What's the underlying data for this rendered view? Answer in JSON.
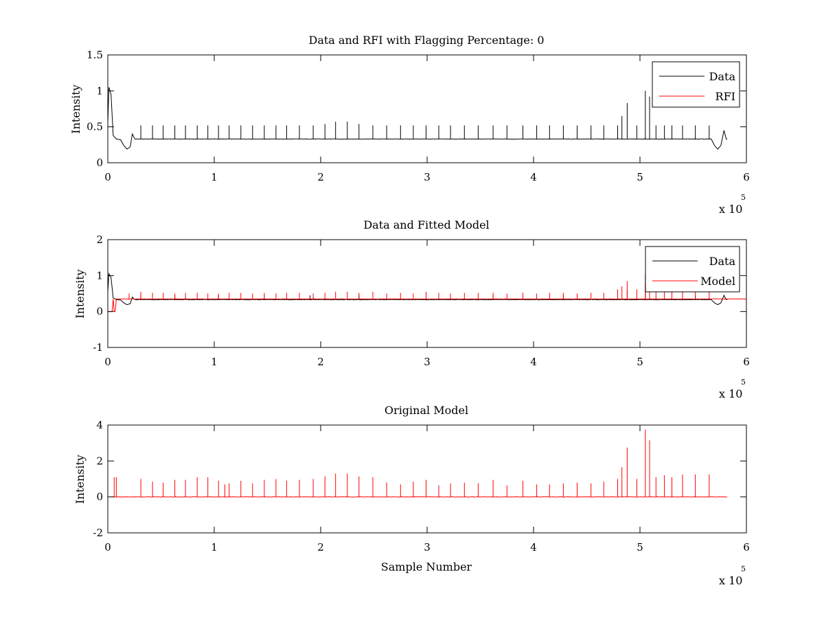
{
  "figure": {
    "colors": {
      "data": "#000000",
      "rfi": "#ff0000",
      "background": "#ffffff",
      "axes": "#000000"
    }
  },
  "chart_data": [
    {
      "type": "line",
      "title": "Data and RFI with Flagging Percentage: 0",
      "xlabel": "",
      "ylabel": "Intensity",
      "xlim": [
        0,
        600000
      ],
      "ylim": [
        0,
        1.5
      ],
      "x_ticks": [
        "0",
        "1",
        "2",
        "3",
        "4",
        "5",
        "6"
      ],
      "y_ticks": [
        "0",
        "0.5",
        "1",
        "1.5"
      ],
      "x_multiplier": "x 10",
      "x_exponent": "5",
      "grid": false,
      "legend_position": "top-right",
      "legend": [
        "Data",
        "RFI"
      ],
      "series": [
        {
          "name": "Data",
          "color": "#000000",
          "baseline": 0.33,
          "start_profile": [
            [
              0,
              0.55
            ],
            [
              1000,
              1.05
            ],
            [
              3000,
              0.95
            ],
            [
              5000,
              0.38
            ],
            [
              8000,
              0.33
            ],
            [
              12000,
              0.32
            ],
            [
              15000,
              0.24
            ],
            [
              18000,
              0.19
            ],
            [
              21000,
              0.22
            ],
            [
              23000,
              0.4
            ],
            [
              25000,
              0.34
            ]
          ],
          "end_profile": [
            [
              567000,
              0.33
            ],
            [
              570000,
              0.24
            ],
            [
              573000,
              0.19
            ],
            [
              576000,
              0.24
            ],
            [
              579000,
              0.45
            ],
            [
              581000,
              0.33
            ],
            [
              582000,
              0.33
            ]
          ],
          "spikes": [
            [
              3000,
              0.6
            ],
            [
              10000,
              0.52
            ],
            [
              31000,
              0.52
            ],
            [
              42000,
              0.52
            ],
            [
              52000,
              0.52
            ],
            [
              63000,
              0.52
            ],
            [
              73000,
              0.52
            ],
            [
              84000,
              0.52
            ],
            [
              94000,
              0.52
            ],
            [
              104000,
              0.52
            ],
            [
              114000,
              0.52
            ],
            [
              125000,
              0.52
            ],
            [
              136000,
              0.52
            ],
            [
              147000,
              0.52
            ],
            [
              158000,
              0.52
            ],
            [
              168000,
              0.52
            ],
            [
              180000,
              0.52
            ],
            [
              193000,
              0.52
            ],
            [
              204000,
              0.54
            ],
            [
              214000,
              0.57
            ],
            [
              225000,
              0.57
            ],
            [
              236000,
              0.54
            ],
            [
              249000,
              0.52
            ],
            [
              262000,
              0.52
            ],
            [
              275000,
              0.52
            ],
            [
              287000,
              0.52
            ],
            [
              299000,
              0.52
            ],
            [
              311000,
              0.52
            ],
            [
              322000,
              0.52
            ],
            [
              335000,
              0.52
            ],
            [
              348000,
              0.52
            ],
            [
              362000,
              0.52
            ],
            [
              375000,
              0.52
            ],
            [
              390000,
              0.52
            ],
            [
              403000,
              0.52
            ],
            [
              415000,
              0.52
            ],
            [
              428000,
              0.52
            ],
            [
              441000,
              0.52
            ],
            [
              454000,
              0.52
            ],
            [
              466000,
              0.52
            ],
            [
              479000,
              0.52
            ],
            [
              483000,
              0.65
            ],
            [
              488000,
              0.83
            ],
            [
              497000,
              0.52
            ],
            [
              505000,
              1.0
            ],
            [
              509000,
              0.92
            ],
            [
              515000,
              0.52
            ],
            [
              523000,
              0.52
            ],
            [
              530000,
              0.52
            ],
            [
              540000,
              0.52
            ],
            [
              552000,
              0.52
            ],
            [
              565000,
              0.52
            ]
          ]
        },
        {
          "name": "RFI",
          "color": "#ff0000",
          "values": []
        }
      ]
    },
    {
      "type": "line",
      "title": "Data and Fitted Model",
      "xlabel": "",
      "ylabel": "Intensity",
      "xlim": [
        0,
        600000
      ],
      "ylim": [
        -1,
        2
      ],
      "x_ticks": [
        "0",
        "1",
        "2",
        "3",
        "4",
        "5",
        "6"
      ],
      "y_ticks": [
        "-1",
        "0",
        "1",
        "2"
      ],
      "x_multiplier": "x 10",
      "x_exponent": "5",
      "grid": false,
      "legend_position": "top-right",
      "legend": [
        "Data",
        "Model"
      ],
      "series": [
        {
          "name": "Data",
          "color": "#000000",
          "baseline": 0.33,
          "start_profile": [
            [
              0,
              0.55
            ],
            [
              1000,
              1.05
            ],
            [
              3000,
              0.95
            ],
            [
              5000,
              0.38
            ],
            [
              8000,
              0.33
            ],
            [
              12000,
              0.32
            ],
            [
              15000,
              0.24
            ],
            [
              18000,
              0.19
            ],
            [
              21000,
              0.22
            ],
            [
              23000,
              0.4
            ],
            [
              25000,
              0.34
            ]
          ],
          "end_profile": [
            [
              567000,
              0.33
            ],
            [
              570000,
              0.24
            ],
            [
              573000,
              0.19
            ],
            [
              576000,
              0.24
            ],
            [
              579000,
              0.45
            ],
            [
              581000,
              0.33
            ],
            [
              582000,
              0.33
            ]
          ],
          "spikes": [
            [
              3000,
              0.55
            ],
            [
              10000,
              0.45
            ],
            [
              31000,
              0.45
            ],
            [
              63000,
              0.45
            ],
            [
              104000,
              0.45
            ],
            [
              147000,
              0.45
            ],
            [
              190000,
              0.45
            ],
            [
              236000,
              0.45
            ],
            [
              299000,
              0.45
            ],
            [
              362000,
              0.45
            ],
            [
              428000,
              0.45
            ],
            [
              488000,
              0.6
            ],
            [
              505000,
              0.75
            ],
            [
              552000,
              0.45
            ]
          ]
        },
        {
          "name": "Model",
          "color": "#ff0000",
          "baseline": 0.35,
          "start_profile": [
            [
              0,
              0.0
            ],
            [
              4000,
              0.0
            ],
            [
              5000,
              0.35
            ],
            [
              6000,
              0.0
            ],
            [
              7000,
              0.0
            ],
            [
              8000,
              0.35
            ],
            [
              12000,
              0.35
            ]
          ],
          "end_profile": [],
          "spikes": [
            [
              7000,
              1.1
            ],
            [
              20000,
              0.5
            ],
            [
              31000,
              0.55
            ],
            [
              42000,
              0.52
            ],
            [
              52000,
              0.52
            ],
            [
              63000,
              0.5
            ],
            [
              73000,
              0.52
            ],
            [
              84000,
              0.52
            ],
            [
              94000,
              0.5
            ],
            [
              104000,
              0.5
            ],
            [
              114000,
              0.52
            ],
            [
              125000,
              0.52
            ],
            [
              136000,
              0.5
            ],
            [
              147000,
              0.52
            ],
            [
              158000,
              0.5
            ],
            [
              168000,
              0.52
            ],
            [
              180000,
              0.52
            ],
            [
              193000,
              0.5
            ],
            [
              204000,
              0.52
            ],
            [
              214000,
              0.55
            ],
            [
              225000,
              0.55
            ],
            [
              236000,
              0.52
            ],
            [
              249000,
              0.55
            ],
            [
              262000,
              0.5
            ],
            [
              275000,
              0.52
            ],
            [
              287000,
              0.5
            ],
            [
              299000,
              0.55
            ],
            [
              311000,
              0.52
            ],
            [
              322000,
              0.5
            ],
            [
              335000,
              0.52
            ],
            [
              348000,
              0.52
            ],
            [
              362000,
              0.52
            ],
            [
              375000,
              0.5
            ],
            [
              390000,
              0.52
            ],
            [
              403000,
              0.5
            ],
            [
              415000,
              0.52
            ],
            [
              428000,
              0.52
            ],
            [
              441000,
              0.5
            ],
            [
              454000,
              0.52
            ],
            [
              466000,
              0.52
            ],
            [
              479000,
              0.62
            ],
            [
              483000,
              0.7
            ],
            [
              488000,
              0.85
            ],
            [
              497000,
              0.62
            ],
            [
              505000,
              1.05
            ],
            [
              509000,
              0.95
            ],
            [
              515000,
              0.62
            ],
            [
              523000,
              0.55
            ],
            [
              530000,
              0.55
            ],
            [
              540000,
              0.55
            ],
            [
              552000,
              0.55
            ],
            [
              565000,
              0.55
            ]
          ]
        }
      ]
    },
    {
      "type": "line",
      "title": "Original Model",
      "xlabel": "Sample Number",
      "ylabel": "Intensity",
      "xlim": [
        0,
        600000
      ],
      "ylim": [
        -2,
        4
      ],
      "x_ticks": [
        "0",
        "1",
        "2",
        "3",
        "4",
        "5",
        "6"
      ],
      "y_ticks": [
        "-2",
        "0",
        "2",
        "4"
      ],
      "x_multiplier": "x 10",
      "x_exponent": "5",
      "grid": false,
      "legend_position": "none",
      "legend": [],
      "series": [
        {
          "name": "",
          "color": "#ff0000",
          "baseline": 0.0,
          "start_profile": [
            [
              3000,
              0.0
            ]
          ],
          "end_profile": [
            [
              582000,
              0.0
            ]
          ],
          "spikes": [
            [
              6000,
              1.1
            ],
            [
              8000,
              1.1
            ],
            [
              31000,
              1.0
            ],
            [
              42000,
              0.85
            ],
            [
              52000,
              0.8
            ],
            [
              63000,
              0.95
            ],
            [
              73000,
              0.95
            ],
            [
              84000,
              1.1
            ],
            [
              94000,
              1.1
            ],
            [
              104000,
              0.9
            ],
            [
              110000,
              0.7
            ],
            [
              114000,
              0.75
            ],
            [
              125000,
              0.9
            ],
            [
              136000,
              0.75
            ],
            [
              147000,
              0.95
            ],
            [
              158000,
              1.0
            ],
            [
              168000,
              0.9
            ],
            [
              180000,
              0.95
            ],
            [
              193000,
              1.0
            ],
            [
              204000,
              1.15
            ],
            [
              214000,
              1.3
            ],
            [
              225000,
              1.3
            ],
            [
              236000,
              1.15
            ],
            [
              249000,
              1.1
            ],
            [
              262000,
              0.8
            ],
            [
              275000,
              0.7
            ],
            [
              287000,
              0.85
            ],
            [
              299000,
              0.95
            ],
            [
              311000,
              0.65
            ],
            [
              322000,
              0.75
            ],
            [
              335000,
              0.8
            ],
            [
              348000,
              0.75
            ],
            [
              362000,
              0.95
            ],
            [
              375000,
              0.65
            ],
            [
              390000,
              0.9
            ],
            [
              403000,
              0.7
            ],
            [
              415000,
              0.7
            ],
            [
              428000,
              0.75
            ],
            [
              441000,
              0.8
            ],
            [
              454000,
              0.75
            ],
            [
              466000,
              0.85
            ],
            [
              479000,
              1.0
            ],
            [
              483000,
              1.65
            ],
            [
              488000,
              2.75
            ],
            [
              497000,
              1.0
            ],
            [
              505000,
              3.75
            ],
            [
              509000,
              3.15
            ],
            [
              515000,
              1.1
            ],
            [
              523000,
              1.2
            ],
            [
              530000,
              1.1
            ],
            [
              540000,
              1.25
            ],
            [
              552000,
              1.25
            ],
            [
              565000,
              1.25
            ]
          ]
        }
      ]
    }
  ]
}
